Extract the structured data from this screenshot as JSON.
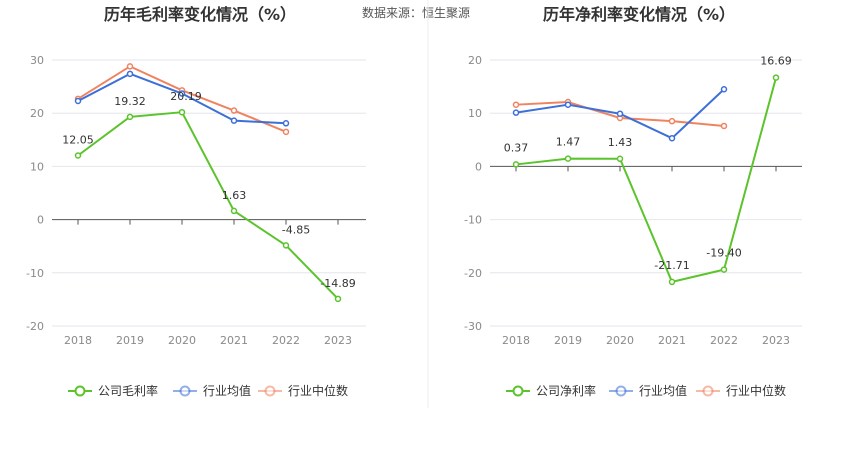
{
  "source_label": "数据来源：恒生聚源",
  "chart_data": [
    {
      "type": "line",
      "title": "历年毛利率变化情况（%）",
      "categories": [
        "2018",
        "2019",
        "2020",
        "2021",
        "2022",
        "2023"
      ],
      "ylim": [
        -20,
        30
      ],
      "yticks": [
        -20,
        -10,
        0,
        10,
        20,
        30
      ],
      "grid": true,
      "legend_position": "bottom",
      "series": [
        {
          "name": "公司毛利率",
          "color": "#5bc42c",
          "values": [
            12.05,
            19.32,
            20.19,
            1.63,
            -4.85,
            -14.89
          ],
          "labels": [
            "12.05",
            "19.32",
            "20.19",
            "1.63",
            "-4.85",
            "-14.89"
          ]
        },
        {
          "name": "行业均值",
          "color": "#3c6fd8",
          "values": [
            22.3,
            27.4,
            23.7,
            18.6,
            18.1,
            null
          ]
        },
        {
          "name": "行业中位数",
          "color": "#f0835f",
          "values": [
            22.7,
            28.8,
            24.3,
            20.5,
            16.5,
            null
          ]
        }
      ]
    },
    {
      "type": "line",
      "title": "历年净利率变化情况（%）",
      "categories": [
        "2018",
        "2019",
        "2020",
        "2021",
        "2022",
        "2023"
      ],
      "ylim": [
        -30,
        20
      ],
      "yticks": [
        -30,
        -20,
        -10,
        0,
        10,
        20
      ],
      "grid": true,
      "legend_position": "bottom",
      "series": [
        {
          "name": "公司净利率",
          "color": "#5bc42c",
          "values": [
            0.37,
            1.47,
            1.43,
            -21.71,
            -19.4,
            16.69
          ],
          "labels": [
            "0.37",
            "1.47",
            "1.43",
            "-21.71",
            "-19.40",
            "16.69"
          ]
        },
        {
          "name": "行业均值",
          "color": "#3c6fd8",
          "values": [
            10.1,
            11.6,
            9.9,
            5.3,
            14.5,
            null
          ]
        },
        {
          "name": "行业中位数",
          "color": "#f0835f",
          "values": [
            11.6,
            12.1,
            9.1,
            8.5,
            7.6,
            null
          ]
        }
      ]
    }
  ]
}
